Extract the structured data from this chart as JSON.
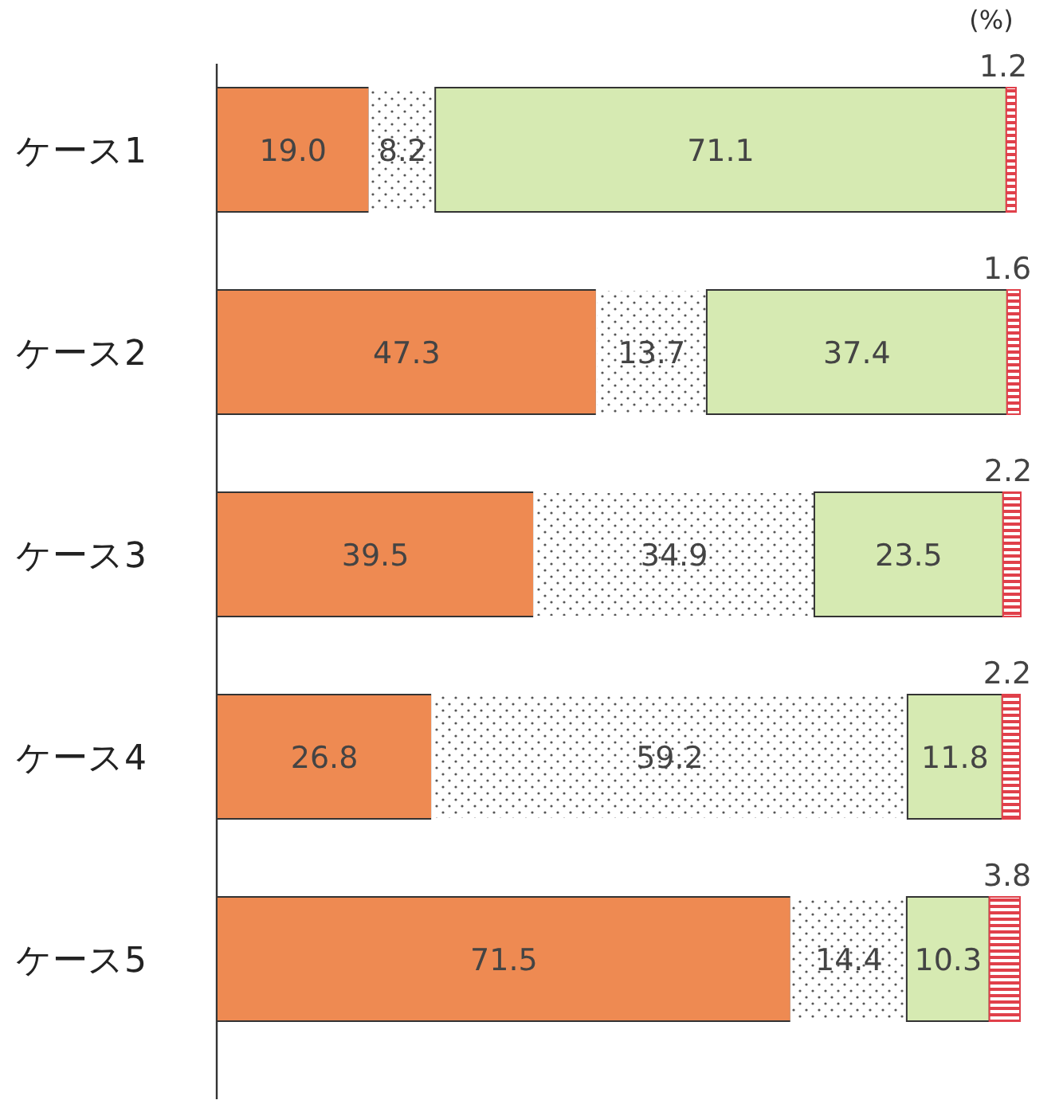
{
  "chart_data": {
    "type": "bar",
    "orientation": "horizontal",
    "stacked": true,
    "xlabel": "(%)",
    "categories": [
      "ケース1",
      "ケース2",
      "ケース3",
      "ケース4",
      "ケース5"
    ],
    "series": [
      {
        "color": "#ee8a52",
        "values": [
          19.0,
          47.3,
          39.5,
          26.8,
          71.5
        ],
        "value_labels": [
          "19.0",
          "47.3",
          "39.5",
          "26.8",
          "71.5"
        ]
      },
      {
        "color": "#ffffff",
        "values": [
          8.2,
          13.7,
          34.9,
          59.2,
          14.4
        ],
        "value_labels": [
          "8.2",
          "13.7",
          "34.9",
          "59.2",
          "14.4"
        ]
      },
      {
        "color": "#d6eab2",
        "values": [
          71.1,
          37.4,
          23.5,
          11.8,
          10.3
        ],
        "value_labels": [
          "71.1",
          "37.4",
          "23.5",
          "11.8",
          "10.3"
        ]
      },
      {
        "color": "#e0404a",
        "values": [
          1.2,
          1.6,
          2.2,
          2.2,
          3.8
        ],
        "value_labels": [
          "1.2",
          "1.6",
          "2.2",
          "2.2",
          "3.8"
        ]
      }
    ],
    "xlim": [
      0,
      100
    ],
    "tick_labels": "y"
  }
}
